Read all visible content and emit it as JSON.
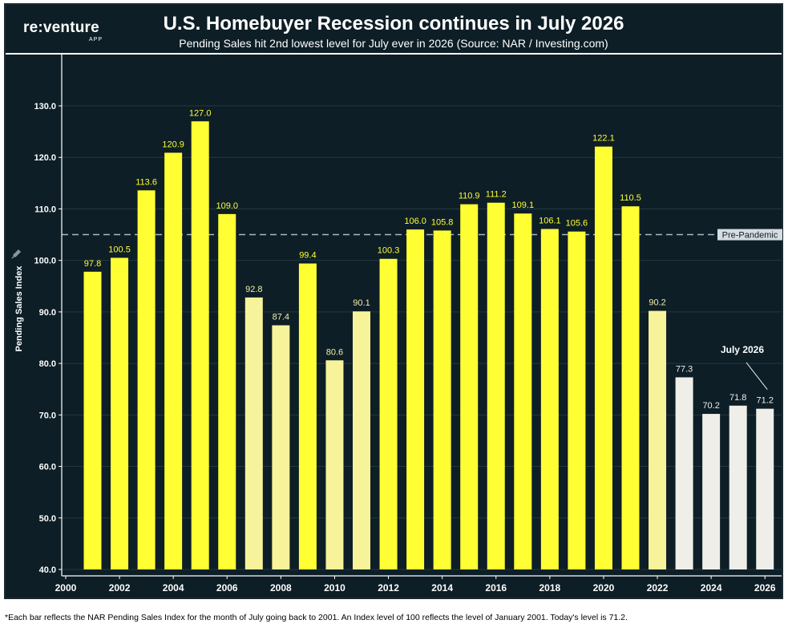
{
  "header": {
    "logo_text": "re:venture",
    "logo_sub": "APP",
    "title": "U.S. Homebuyer Recession continues in July 2026",
    "subtitle": "Pending Sales hit 2nd lowest level for July ever in 2026 (Source: NAR / Investing.com)"
  },
  "footnote": "*Each bar reflects the NAR Pending Sales Index for the month of July going back to 2001. An Index level of 100 reflects the level of January 2001. Today's level is 71.2.",
  "colors": {
    "background": "#0d1e26",
    "bar_high": "#ffff33",
    "bar_mid": "#f6f39a",
    "bar_low": "#efeee8",
    "reference_line": "#aab8c0"
  },
  "chart_data": {
    "type": "bar",
    "ylabel": "Pending Sales Index",
    "ylim": [
      40,
      130
    ],
    "yticks": [
      "40.0",
      "50.0",
      "60.0",
      "70.0",
      "80.0",
      "90.0",
      "100.0",
      "110.0",
      "120.0",
      "130.0"
    ],
    "xticks": [
      "2000",
      "2002",
      "2004",
      "2006",
      "2008",
      "2010",
      "2012",
      "2014",
      "2016",
      "2018",
      "2020",
      "2022",
      "2024",
      "2026"
    ],
    "xticks_start": 2000,
    "categories": [
      "2001",
      "2002",
      "2003",
      "2004",
      "2005",
      "2006",
      "2007",
      "2008",
      "2009",
      "2010",
      "2011",
      "2012",
      "2013",
      "2014",
      "2015",
      "2016",
      "2017",
      "2018",
      "2019",
      "2020",
      "2021",
      "2022",
      "2023",
      "2024",
      "2025",
      "2026"
    ],
    "values": [
      97.8,
      100.5,
      113.6,
      120.9,
      127.0,
      109.0,
      92.8,
      87.4,
      99.4,
      80.6,
      90.1,
      100.3,
      106.0,
      105.8,
      110.9,
      111.2,
      109.1,
      106.1,
      105.6,
      122.1,
      110.5,
      90.2,
      77.3,
      70.2,
      71.8,
      71.2
    ],
    "reference_line": {
      "value": 105,
      "label": "Pre-Pandemic"
    },
    "annotation": {
      "text": "July 2026",
      "category": "2026"
    },
    "grid": true
  }
}
